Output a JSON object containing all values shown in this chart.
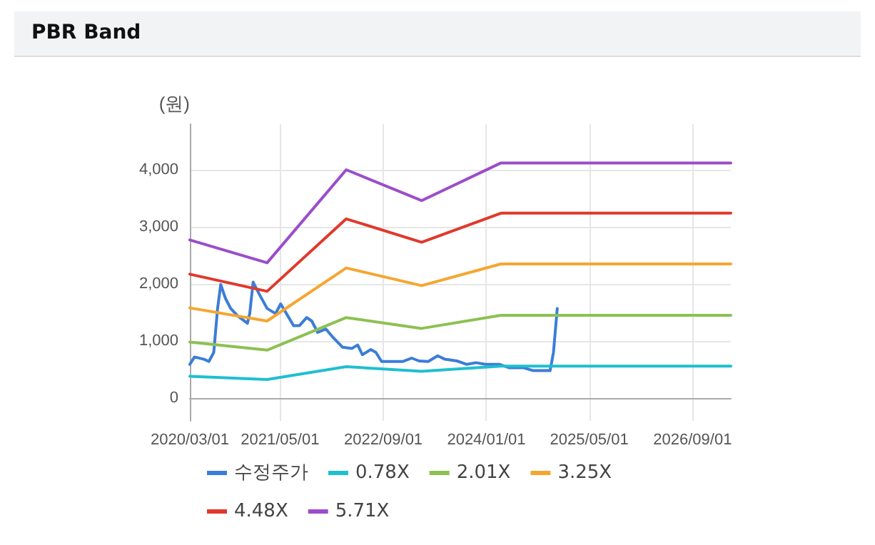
{
  "chart_data": {
    "type": "line",
    "title": "PBR Band",
    "ylabel": "(원)",
    "xlim": [
      "2020-03-01",
      "2027-03-01"
    ],
    "xticks": [
      {
        "value": "2020-03-01",
        "label": "2020/03/01"
      },
      {
        "value": "2021-05-01",
        "label": "2021/05/01"
      },
      {
        "value": "2022-09-01",
        "label": "2022/09/01"
      },
      {
        "value": "2024-01-01",
        "label": "2024/01/01"
      },
      {
        "value": "2025-05-01",
        "label": "2025/05/01"
      },
      {
        "value": "2026-09-01",
        "label": "2026/09/01"
      }
    ],
    "ylim": [
      -400,
      4800
    ],
    "yticks": [
      0,
      {
        "value": 1000,
        "label": "1,000"
      },
      {
        "value": 2000,
        "label": "2,000"
      },
      {
        "value": 3000,
        "label": "3,000"
      },
      {
        "value": 4000,
        "label": "4,000"
      }
    ],
    "grid": true,
    "legend": "bottom",
    "marker": "none",
    "line_style": "solid",
    "series": [
      {
        "name": "수정주가",
        "color": "#3b7dd8",
        "x": [
          "2020-03-01",
          "2020-03-23",
          "2020-05-07",
          "2020-05-30",
          "2020-06-22",
          "2020-07-10",
          "2020-07-25",
          "2020-08-17",
          "2020-09-10",
          "2020-10-13",
          "2020-11-28",
          "2020-12-09",
          "2020-12-25",
          "2021-01-23",
          "2021-03-01",
          "2021-04-10",
          "2021-05-04",
          "2021-05-25",
          "2021-07-04",
          "2021-08-01",
          "2021-09-04",
          "2021-09-28",
          "2021-10-26",
          "2021-12-04",
          "2022-01-07",
          "2022-02-21",
          "2022-04-06",
          "2022-05-03",
          "2022-05-25",
          "2022-07-04",
          "2022-07-28",
          "2022-08-24",
          "2022-10-03",
          "2022-12-01",
          "2023-01-13",
          "2023-02-17",
          "2023-04-01",
          "2023-05-16",
          "2023-06-19",
          "2023-08-15",
          "2023-10-01",
          "2023-11-13",
          "2023-12-28",
          "2024-03-04",
          "2024-04-19",
          "2024-06-26",
          "2024-08-10",
          "2024-10-28",
          "2024-11-13",
          "2024-12-01"
        ],
        "values": [
          590,
          720,
          680,
          640,
          800,
          1570,
          1990,
          1740,
          1570,
          1440,
          1310,
          1480,
          2030,
          1820,
          1570,
          1480,
          1650,
          1520,
          1270,
          1270,
          1410,
          1350,
          1150,
          1210,
          1060,
          890,
          870,
          930,
          760,
          850,
          800,
          640,
          640,
          640,
          700,
          650,
          640,
          740,
          680,
          650,
          590,
          620,
          590,
          590,
          530,
          530,
          480,
          480,
          800,
          1570
        ]
      },
      {
        "name": "0.78X",
        "color": "#1fbfcf",
        "x": [
          "2020-03-01",
          "2021-03-01",
          "2022-03-10",
          "2023-03-01",
          "2024-03-10",
          "2027-03-01"
        ],
        "values": [
          380,
          325,
          550,
          470,
          560,
          560
        ]
      },
      {
        "name": "2.01X",
        "color": "#8cc152",
        "x": [
          "2020-03-01",
          "2021-03-01",
          "2022-03-10",
          "2023-03-01",
          "2024-03-10",
          "2027-03-01"
        ],
        "values": [
          980,
          840,
          1410,
          1220,
          1450,
          1450
        ]
      },
      {
        "name": "3.25X",
        "color": "#f5a630",
        "x": [
          "2020-03-01",
          "2021-03-01",
          "2022-03-10",
          "2023-03-01",
          "2024-03-10",
          "2027-03-01"
        ],
        "values": [
          1580,
          1350,
          2280,
          1970,
          2350,
          2350
        ]
      },
      {
        "name": "4.48X",
        "color": "#e0392c",
        "x": [
          "2020-03-01",
          "2021-03-01",
          "2022-03-10",
          "2023-03-01",
          "2024-03-10",
          "2027-03-01"
        ],
        "values": [
          2170,
          1870,
          3140,
          2730,
          3240,
          3240
        ]
      },
      {
        "name": "5.71X",
        "color": "#9b4dca",
        "x": [
          "2020-03-01",
          "2021-03-01",
          "2022-03-10",
          "2023-03-01",
          "2024-03-10",
          "2027-03-01"
        ],
        "values": [
          2770,
          2370,
          4000,
          3460,
          4120,
          4120
        ]
      }
    ]
  }
}
